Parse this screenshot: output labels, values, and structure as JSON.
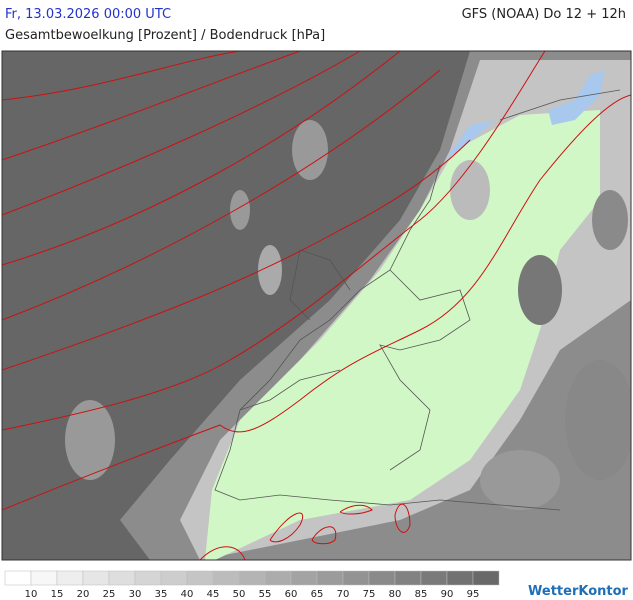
{
  "header": {
    "timestamp": "Fr, 13.03.2026 00:00 UTC",
    "model": "GFS (NOAA) Do 12 + 12h",
    "title": "Gesamtbewoelkung [Prozent] / Bodendruck [hPa]"
  },
  "legend": {
    "labels": [
      "10",
      "15",
      "20",
      "25",
      "30",
      "35",
      "40",
      "45",
      "50",
      "55",
      "60",
      "65",
      "70",
      "75",
      "80",
      "85",
      "90",
      "95"
    ]
  },
  "logo": "WetterKontor"
}
